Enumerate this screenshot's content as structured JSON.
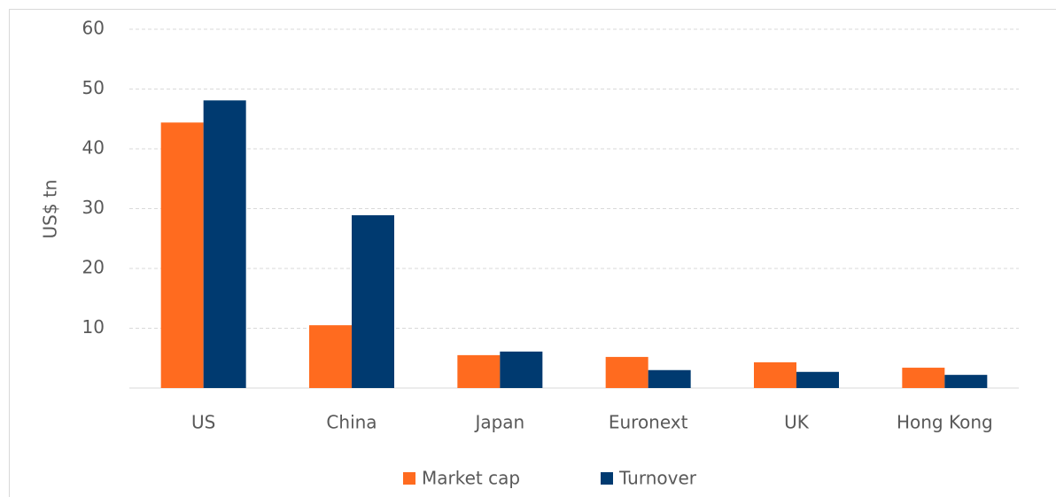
{
  "chart_data": {
    "type": "bar",
    "y_label": "US$ tn",
    "categories": [
      "US",
      "China",
      "Japan",
      "Euronext",
      "UK",
      "Hong Kong"
    ],
    "series": [
      {
        "name": "Market cap",
        "color": "#ff6b1f",
        "values": [
          44.4,
          10.5,
          5.5,
          5.2,
          4.3,
          3.4
        ]
      },
      {
        "name": "Turnover",
        "color": "#003a70",
        "values": [
          48.1,
          28.9,
          6.1,
          3.0,
          2.7,
          2.2
        ]
      }
    ],
    "ylim": [
      0,
      60
    ],
    "yticks": [
      10,
      20,
      30,
      40,
      50,
      60
    ],
    "grid": true,
    "legend": "bottom"
  }
}
